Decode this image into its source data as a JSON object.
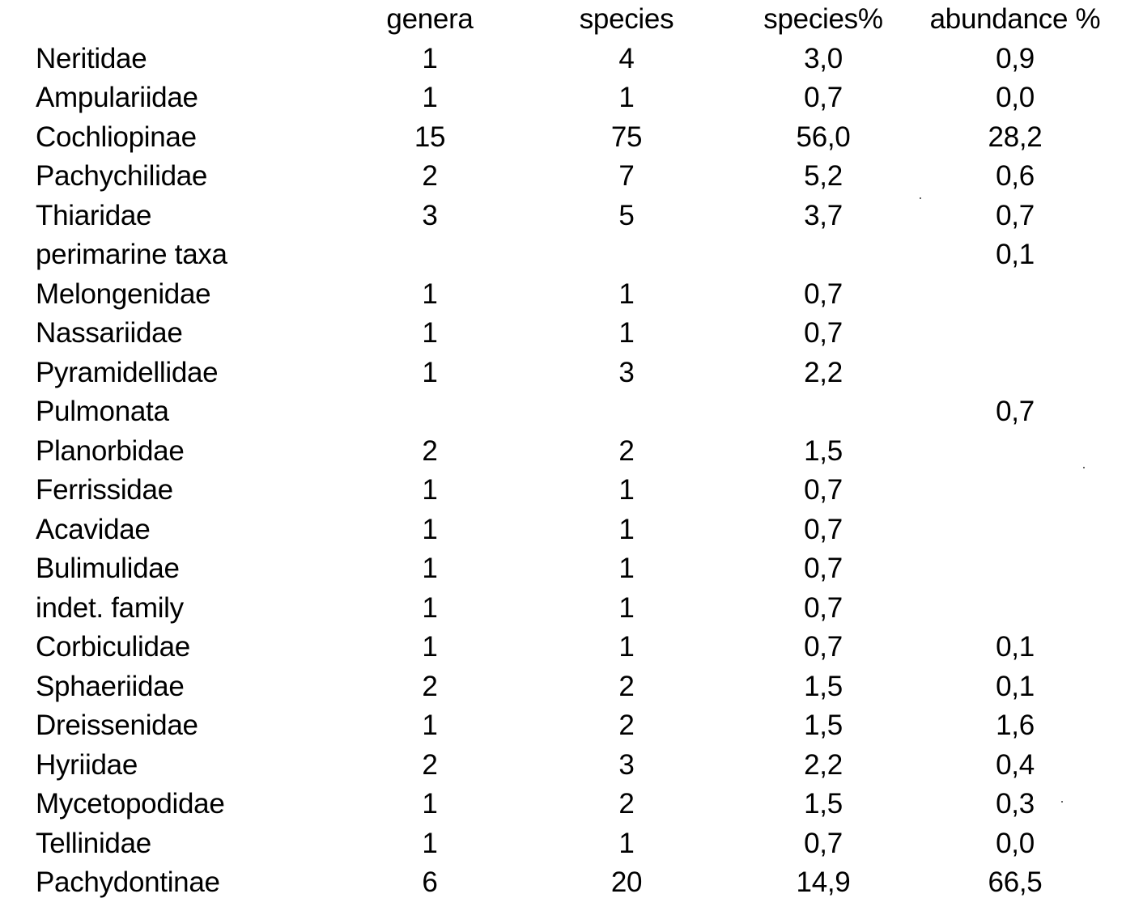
{
  "table": {
    "headers": {
      "name": "",
      "genera": "genera",
      "species": "species",
      "species_pct": "species%",
      "abundance_pct": "abundance %"
    },
    "rows": [
      {
        "name": "Neritidae",
        "indent": false,
        "genera": "1",
        "species": "4",
        "species_pct": "3,0",
        "abundance_pct": "0,9"
      },
      {
        "name": "Ampulariidae",
        "indent": false,
        "genera": "1",
        "species": "1",
        "species_pct": "0,7",
        "abundance_pct": "0,0"
      },
      {
        "name": "Cochliopinae",
        "indent": false,
        "genera": "15",
        "species": "75",
        "species_pct": "56,0",
        "abundance_pct": "28,2"
      },
      {
        "name": "Pachychilidae",
        "indent": false,
        "genera": "2",
        "species": "7",
        "species_pct": "5,2",
        "abundance_pct": "0,6"
      },
      {
        "name": "Thiaridae",
        "indent": false,
        "genera": "3",
        "species": "5",
        "species_pct": "3,7",
        "abundance_pct": "0,7"
      },
      {
        "name": "perimarine taxa",
        "indent": false,
        "genera": "",
        "species": "",
        "species_pct": "",
        "abundance_pct": "0,1"
      },
      {
        "name": "Melongenidae",
        "indent": true,
        "genera": "1",
        "species": "1",
        "species_pct": "0,7",
        "abundance_pct": ""
      },
      {
        "name": "Nassariidae",
        "indent": true,
        "genera": "1",
        "species": "1",
        "species_pct": "0,7",
        "abundance_pct": ""
      },
      {
        "name": "Pyramidellidae",
        "indent": true,
        "genera": "1",
        "species": "3",
        "species_pct": "2,2",
        "abundance_pct": ""
      },
      {
        "name": "Pulmonata",
        "indent": false,
        "genera": "",
        "species": "",
        "species_pct": "",
        "abundance_pct": "0,7"
      },
      {
        "name": "Planorbidae",
        "indent": true,
        "genera": "2",
        "species": "2",
        "species_pct": "1,5",
        "abundance_pct": ""
      },
      {
        "name": "Ferrissidae",
        "indent": true,
        "genera": "1",
        "species": "1",
        "species_pct": "0,7",
        "abundance_pct": ""
      },
      {
        "name": "Acavidae",
        "indent": true,
        "genera": "1",
        "species": "1",
        "species_pct": "0,7",
        "abundance_pct": ""
      },
      {
        "name": "Bulimulidae",
        "indent": true,
        "genera": "1",
        "species": "1",
        "species_pct": "0,7",
        "abundance_pct": ""
      },
      {
        "name": "indet. family",
        "indent": true,
        "genera": "1",
        "species": "1",
        "species_pct": "0,7",
        "abundance_pct": ""
      },
      {
        "name": "Corbiculidae",
        "indent": false,
        "genera": "1",
        "species": "1",
        "species_pct": "0,7",
        "abundance_pct": "0,1"
      },
      {
        "name": "Sphaeriidae",
        "indent": false,
        "genera": "2",
        "species": "2",
        "species_pct": "1,5",
        "abundance_pct": "0,1"
      },
      {
        "name": "Dreissenidae",
        "indent": false,
        "genera": "1",
        "species": "2",
        "species_pct": "1,5",
        "abundance_pct": "1,6"
      },
      {
        "name": "Hyriidae",
        "indent": false,
        "genera": "2",
        "species": "3",
        "species_pct": "2,2",
        "abundance_pct": "0,4"
      },
      {
        "name": "Mycetopodidae",
        "indent": false,
        "genera": "1",
        "species": "2",
        "species_pct": "1,5",
        "abundance_pct": "0,3"
      },
      {
        "name": "Tellinidae",
        "indent": false,
        "genera": "1",
        "species": "1",
        "species_pct": "0,7",
        "abundance_pct": "0,0"
      },
      {
        "name": "Pachydontinae",
        "indent": false,
        "genera": "6",
        "species": "20",
        "species_pct": "14,9",
        "abundance_pct": "66,5"
      }
    ]
  }
}
